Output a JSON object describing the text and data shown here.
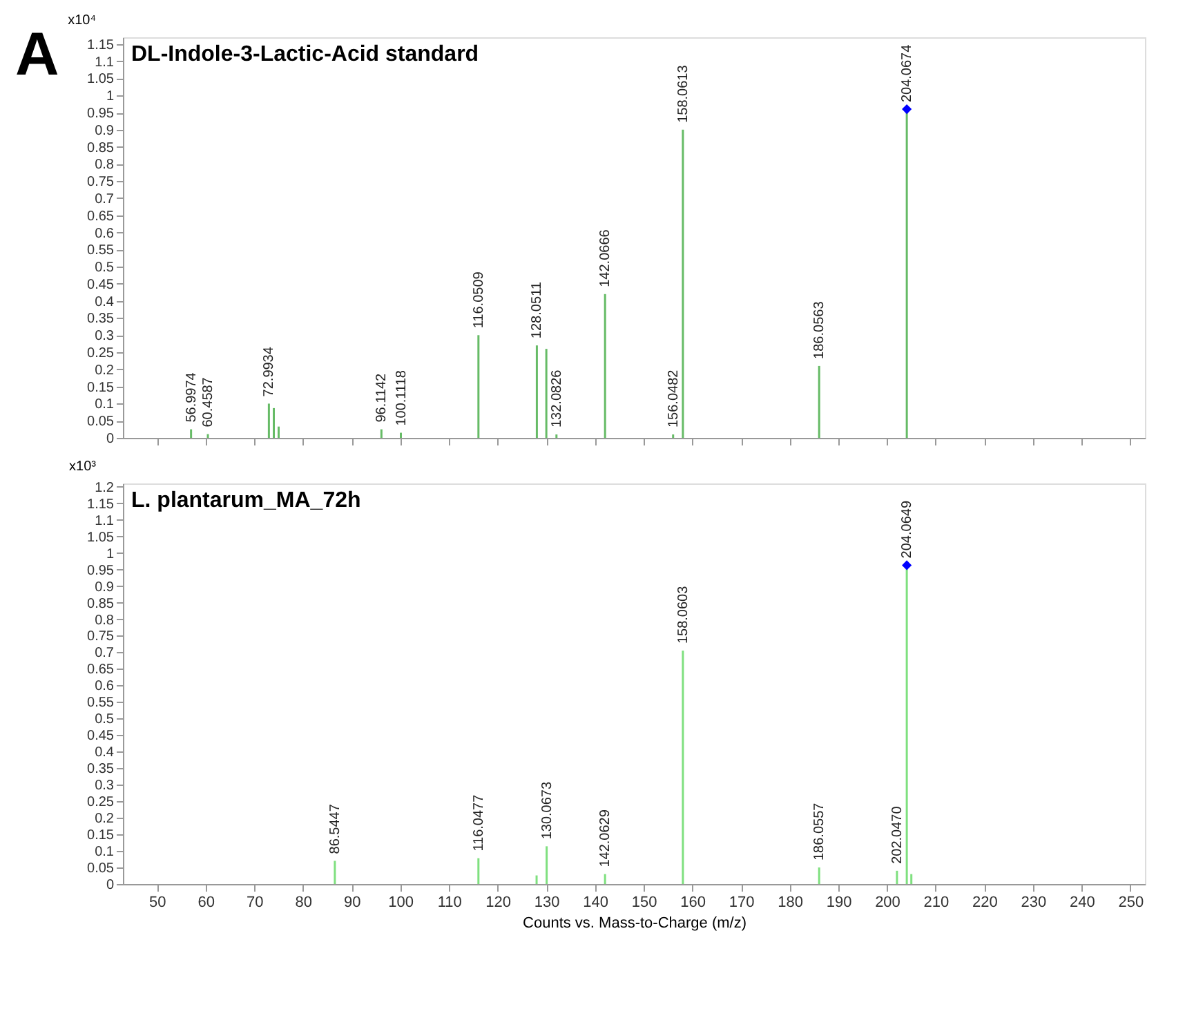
{
  "chart_data": [
    {
      "type": "bar",
      "title": "DL-Indole-3-Lactic-Acid standard",
      "ylabel": "x10⁴",
      "annotations": [
        "A",
        {
          "text": "56.9974",
          "x": 56.9974,
          "y": 0.025
        },
        {
          "text": "60.4587",
          "x": 60.4587,
          "y": 0.011
        },
        {
          "text": "72.9934",
          "x": 72.9934,
          "y": 0.1
        },
        {
          "text": "96.1142",
          "x": 96.1142,
          "y": 0.025
        },
        {
          "text": "100.1118",
          "x": 100.1118,
          "y": 0.015
        },
        {
          "text": "116.0509",
          "x": 116.0509,
          "y": 0.3
        },
        {
          "text": "128.0511",
          "x": 128.0511,
          "y": 0.27
        },
        {
          "text": "132.0826",
          "x": 132.0826,
          "y": 0.01
        },
        {
          "text": "142.0666",
          "x": 142.0666,
          "y": 0.42
        },
        {
          "text": "156.0482",
          "x": 156.0482,
          "y": 0.01
        },
        {
          "text": "158.0613",
          "x": 158.0613,
          "y": 0.9
        },
        {
          "text": "186.0563",
          "x": 186.0563,
          "y": 0.21
        },
        {
          "text": "204.0674",
          "x": 204.0674,
          "y": 0.96
        }
      ],
      "series": [
        {
          "type": "bar",
          "color": "#66bb66",
          "x": [
            56.9974,
            60.4587,
            72.9934,
            74.0,
            75.0,
            96.1142,
            100.1118,
            116.0509,
            128.0511,
            130.0,
            132.0826,
            142.0666,
            156.0482,
            158.0613,
            186.0563,
            204.0674
          ],
          "values": [
            0.025,
            0.011,
            0.1,
            0.087,
            0.033,
            0.025,
            0.015,
            0.3,
            0.27,
            0.26,
            0.01,
            0.42,
            0.01,
            0.9,
            0.21,
            0.96
          ]
        },
        {
          "type": "scatter",
          "color": "#0000ff",
          "marker": "diamond",
          "x": [
            204.0674
          ],
          "values": [
            0.96
          ]
        }
      ],
      "xlim": [
        43,
        253
      ],
      "xticks": [
        50,
        60,
        70,
        80,
        90,
        100,
        110,
        120,
        130,
        140,
        150,
        160,
        170,
        180,
        190,
        200,
        210,
        220,
        230,
        240,
        250
      ],
      "ylim": [
        0,
        1.17
      ],
      "yticks": [
        0,
        0.05,
        0.1,
        0.15,
        0.2,
        0.25,
        0.3,
        0.35,
        0.4,
        0.45,
        0.5,
        0.55,
        0.6,
        0.65,
        0.7,
        0.75,
        0.8,
        0.85,
        0.9,
        0.95,
        1,
        1.05,
        1.1,
        1.15
      ],
      "tick_labels": "y",
      "grid": false,
      "legend": false
    },
    {
      "type": "bar",
      "title": "L. plantarum_MA_72h",
      "ylabel": "x10³",
      "xlabel": "Counts vs. Mass-to-Charge (m/z)",
      "annotations": [
        {
          "text": "86.5447",
          "x": 86.5447,
          "y": 0.07
        },
        {
          "text": "116.0477",
          "x": 116.0477,
          "y": 0.078
        },
        {
          "text": "130.0673",
          "x": 130.0673,
          "y": 0.114
        },
        {
          "text": "142.0629",
          "x": 142.0629,
          "y": 0.03
        },
        {
          "text": "158.0603",
          "x": 158.0603,
          "y": 0.705
        },
        {
          "text": "186.0557",
          "x": 186.0557,
          "y": 0.05
        },
        {
          "text": "202.0470",
          "x": 202.047,
          "y": 0.04
        },
        {
          "text": "204.0649",
          "x": 204.0649,
          "y": 0.963
        }
      ],
      "series": [
        {
          "type": "bar",
          "color": "#7fe07f",
          "x": [
            86.5447,
            116.0477,
            128.0,
            130.0673,
            142.0629,
            158.0603,
            186.0557,
            202.047,
            204.0649,
            205.0
          ],
          "values": [
            0.07,
            0.078,
            0.026,
            0.114,
            0.03,
            0.705,
            0.05,
            0.04,
            0.963,
            0.03
          ]
        },
        {
          "type": "scatter",
          "color": "#0000ff",
          "marker": "diamond",
          "x": [
            204.0649
          ],
          "values": [
            0.963
          ]
        }
      ],
      "xlim": [
        43,
        253
      ],
      "xticks": [
        50,
        60,
        70,
        80,
        90,
        100,
        110,
        120,
        130,
        140,
        150,
        160,
        170,
        180,
        190,
        200,
        210,
        220,
        230,
        240,
        250
      ],
      "ylim": [
        0,
        1.21
      ],
      "yticks": [
        0,
        0.05,
        0.1,
        0.15,
        0.2,
        0.25,
        0.3,
        0.35,
        0.4,
        0.45,
        0.5,
        0.55,
        0.6,
        0.65,
        0.7,
        0.75,
        0.8,
        0.85,
        0.9,
        0.95,
        1,
        1.05,
        1.1,
        1.15,
        1.2
      ],
      "grid": false,
      "legend": false
    }
  ]
}
